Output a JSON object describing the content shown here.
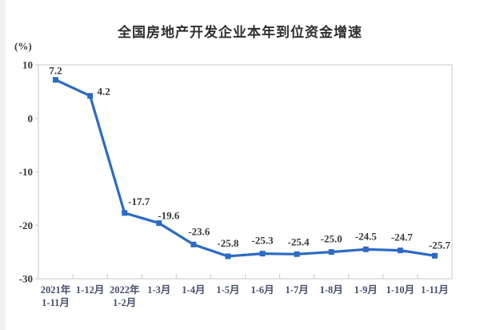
{
  "page": {
    "title": "全国房地产开发企业本年到位资金增速",
    "unit_label": "(%)"
  },
  "chart_data": {
    "type": "line",
    "title": "全国房地产开发企业本年到位资金增速",
    "ylabel": "(%)",
    "xlabel": "",
    "categories": [
      "2021年\n1-11月",
      "1-12月",
      "2022年\n1-2月",
      "1-3月",
      "1-4月",
      "1-5月",
      "1-6月",
      "1-7月",
      "1-8月",
      "1-9月",
      "1-10月",
      "1-11月"
    ],
    "values": [
      7.2,
      4.2,
      -17.7,
      -19.6,
      -23.6,
      -25.8,
      -25.3,
      -25.4,
      -25.0,
      -24.5,
      -24.7,
      -25.7
    ],
    "data_labels": [
      "7.2",
      "4.2",
      "-17.7",
      "-19.6",
      "-23.6",
      "-25.8",
      "-25.3",
      "-25.4",
      "-25.0",
      "-24.5",
      "-24.7",
      "-25.7"
    ],
    "ylim": [
      -30,
      10
    ],
    "yticks": [
      10,
      0,
      -10,
      -20,
      -30
    ],
    "grid": false,
    "legend": "none",
    "line_color": "#2b6bc3",
    "marker": "square",
    "border_color": "#c9c9c9",
    "label_color": "#383838",
    "xtick_color": "#47506e"
  }
}
